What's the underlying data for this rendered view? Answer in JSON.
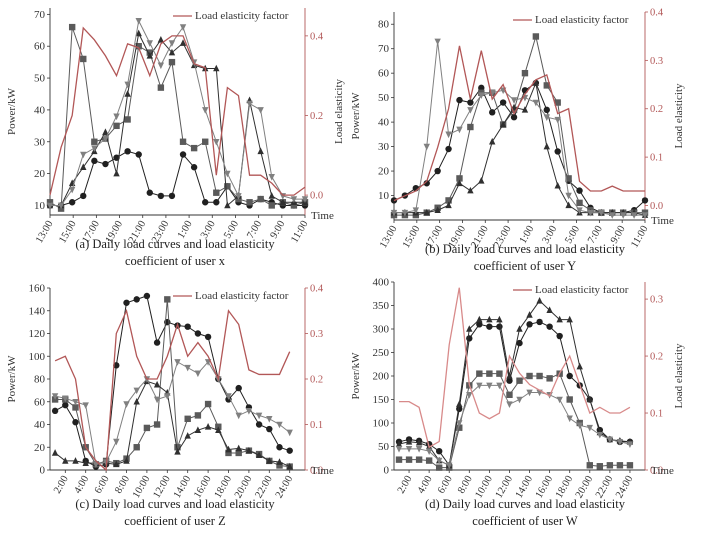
{
  "figure": {
    "panels": [
      "a",
      "b",
      "c",
      "d"
    ]
  },
  "chart_data": [
    {
      "id": "a",
      "type": "line",
      "caption_line1": "(a) Daily load curves and load elasticity",
      "caption_line2": "coefficient of user x",
      "ylabel": "Power/kW",
      "y2label": "Load elasticity",
      "xlabel": "Time",
      "legend": "Load elasticity factor",
      "legend_position": "top-right",
      "ylim": [
        7,
        72
      ],
      "yticks": [
        10,
        20,
        30,
        40,
        50,
        60,
        70
      ],
      "y2lim": [
        -0.05,
        0.47
      ],
      "y2ticks": [
        0.0,
        0.2,
        0.4
      ],
      "y2ticklabels": [
        "0.0",
        "0.2",
        "0.4"
      ],
      "xlim": [
        0,
        22
      ],
      "xtick_positions": [
        1,
        3,
        5,
        7,
        9,
        11,
        13,
        15,
        17,
        19,
        21
      ],
      "xticks": [
        "13:00",
        "15:00",
        "17:00",
        "19:00",
        "21:00",
        "23:00",
        "1:00",
        "3:00",
        "5:00",
        "7:00",
        "9:00",
        "11:00"
      ],
      "xtick_positions_full": [
        0,
        2,
        4,
        6,
        8,
        10,
        12,
        14,
        16,
        18,
        20,
        22
      ],
      "series": [
        {
          "name": "circle",
          "marker": "circle",
          "color": "#202020",
          "values": [
            10,
            10,
            11,
            13,
            24,
            23,
            25,
            27,
            26,
            14,
            13,
            13,
            26,
            22,
            11,
            11,
            16,
            11,
            10,
            12,
            11,
            10,
            10,
            10
          ]
        },
        {
          "name": "square",
          "marker": "square",
          "color": "#5a5a5a",
          "values": [
            11,
            9,
            66,
            56,
            30,
            31,
            35,
            37,
            60,
            58,
            47,
            55,
            30,
            28,
            30,
            14,
            16,
            12,
            11,
            12,
            10,
            11,
            10,
            11
          ]
        },
        {
          "name": "triangle",
          "marker": "triangle",
          "color": "#303030",
          "values": [
            10,
            10,
            17,
            22,
            27,
            33,
            20,
            45,
            64,
            57,
            62,
            58,
            61,
            54,
            53,
            53,
            10,
            13,
            43,
            27,
            13,
            11,
            11,
            11
          ]
        },
        {
          "name": "triangle-down",
          "marker": "triangle-down",
          "color": "#808080",
          "values": [
            10,
            10,
            15,
            26,
            28,
            31,
            38,
            48,
            68,
            61,
            54,
            61,
            66,
            55,
            40,
            30,
            20,
            13,
            42,
            40,
            19,
            13,
            12,
            12
          ]
        },
        {
          "name": "elasticity",
          "marker": "none",
          "color": "#b25757",
          "axis": "right",
          "values": [
            0.0,
            0.12,
            0.2,
            0.42,
            0.39,
            0.35,
            0.3,
            0.38,
            0.37,
            0.3,
            0.38,
            0.4,
            0.4,
            0.33,
            0.32,
            0.05,
            0.27,
            0.25,
            0.05,
            0.05,
            0.03,
            0.0,
            0.0,
            0.02
          ]
        }
      ]
    },
    {
      "id": "b",
      "type": "line",
      "caption_line1": "(b) Daily load curves and load elasticity",
      "caption_line2": "coefficient of user Y",
      "ylabel": "Power/kW",
      "y2label": "Load elasticity",
      "xlabel": "Time",
      "legend": "Load elasticity factor",
      "legend_position": "top-right",
      "ylim": [
        0,
        85
      ],
      "yticks": [
        10,
        20,
        30,
        40,
        50,
        60,
        70,
        80
      ],
      "y2lim": [
        -0.03,
        0.4
      ],
      "y2ticks": [
        0.0,
        0.1,
        0.2,
        0.3,
        0.4
      ],
      "y2ticklabels": [
        "0.0",
        "0.1",
        "0.2",
        "0.3",
        "0.4"
      ],
      "xlim": [
        0,
        22
      ],
      "xtick_positions": [
        1,
        3,
        5,
        7,
        9,
        11,
        13,
        15,
        17,
        19,
        21
      ],
      "xticks": [
        "13:00",
        "15:00",
        "17:00",
        "19:00",
        "21:00",
        "23:00",
        "1:00",
        "3:00",
        "5:00",
        "7:00",
        "9:00",
        "11:00"
      ],
      "xtick_positions_full": [
        0,
        2,
        4,
        6,
        8,
        10,
        12,
        14,
        16,
        18,
        20,
        22
      ],
      "series": [
        {
          "name": "circle",
          "marker": "circle",
          "color": "#202020",
          "values": [
            8,
            10,
            13,
            15,
            20,
            29,
            49,
            48,
            54,
            44,
            48,
            42,
            53,
            56,
            45,
            28,
            16,
            12,
            5,
            3,
            3,
            3,
            4,
            8
          ]
        },
        {
          "name": "square",
          "marker": "square",
          "color": "#5a5a5a",
          "values": [
            2,
            2,
            2,
            3,
            5,
            8,
            17,
            38,
            52,
            52,
            39,
            45,
            60,
            75,
            55,
            48,
            17,
            7,
            4,
            3,
            3,
            3,
            3,
            3
          ]
        },
        {
          "name": "triangle",
          "marker": "triangle",
          "color": "#303030",
          "values": [
            3,
            3,
            3,
            3,
            4,
            6,
            15,
            12,
            16,
            32,
            39,
            46,
            45,
            56,
            30,
            14,
            6,
            3,
            3,
            3,
            3,
            3,
            3,
            2
          ]
        },
        {
          "name": "triangle-down",
          "marker": "triangle-down",
          "color": "#808080",
          "values": [
            3,
            3,
            4,
            30,
            73,
            35,
            37,
            45,
            51,
            52,
            53,
            49,
            50,
            48,
            42,
            41,
            10,
            4,
            3,
            3,
            2,
            2,
            2,
            2
          ]
        },
        {
          "name": "elasticity",
          "marker": "none",
          "color": "#b25757",
          "axis": "right",
          "values": [
            0.01,
            0.02,
            0.03,
            0.05,
            0.12,
            0.2,
            0.33,
            0.22,
            0.32,
            0.22,
            0.25,
            0.19,
            0.23,
            0.26,
            0.27,
            0.19,
            0.2,
            0.05,
            0.03,
            0.03,
            0.04,
            0.03,
            0.03,
            0.03
          ]
        }
      ]
    },
    {
      "id": "c",
      "type": "line",
      "caption_line1": "(c) Daily load curves and load elasticity",
      "caption_line2": "coefficient of user Z",
      "ylabel": "Power/kW",
      "y2label": "",
      "xlabel": "Time",
      "legend": "Load elasticity factor",
      "legend_position": "top-right",
      "ylim": [
        0,
        160
      ],
      "yticks": [
        0,
        20,
        40,
        60,
        80,
        100,
        120,
        140,
        160
      ],
      "y2lim": [
        0,
        0.4
      ],
      "y2ticks": [
        0.0,
        0.1,
        0.2,
        0.3,
        0.4
      ],
      "y2ticklabels": [
        "0.0",
        "0.1",
        "0.2",
        "0.3",
        "0.4"
      ],
      "xlim": [
        0.5,
        25.5
      ],
      "xtick_positions": [
        2,
        4,
        6,
        8,
        10,
        12,
        14,
        16,
        18,
        20,
        22,
        24
      ],
      "xticks": [
        "2:00",
        "4:00",
        "6:00",
        "8:00",
        "10:00",
        "12:00",
        "14:00",
        "16:00",
        "18:00",
        "20:00",
        "22:00",
        "24:00"
      ],
      "xtick_positions_full": [
        2,
        4,
        6,
        8,
        10,
        12,
        14,
        16,
        18,
        20,
        22,
        24
      ],
      "series": [
        {
          "name": "circle",
          "marker": "circle",
          "color": "#202020",
          "values": [
            52,
            57,
            42,
            8,
            3,
            5,
            92,
            147,
            150,
            153,
            112,
            130,
            127,
            126,
            120,
            117,
            80,
            62,
            72,
            55,
            40,
            36,
            20,
            17
          ]
        },
        {
          "name": "square",
          "marker": "square",
          "color": "#5a5a5a",
          "values": [
            62,
            62,
            55,
            20,
            5,
            8,
            6,
            10,
            20,
            37,
            40,
            150,
            20,
            45,
            48,
            58,
            38,
            15,
            15,
            17,
            14,
            8,
            4,
            3
          ]
        },
        {
          "name": "triangle",
          "marker": "triangle",
          "color": "#303030",
          "values": [
            15,
            8,
            8,
            6,
            6,
            6,
            5,
            8,
            60,
            78,
            75,
            68,
            16,
            30,
            35,
            38,
            35,
            18,
            19,
            17,
            13,
            8,
            7,
            3
          ]
        },
        {
          "name": "triangle-down",
          "marker": "triangle-down",
          "color": "#808080",
          "values": [
            65,
            63,
            60,
            57,
            5,
            7,
            25,
            58,
            70,
            80,
            62,
            65,
            95,
            90,
            85,
            95,
            80,
            65,
            48,
            52,
            48,
            45,
            40,
            33
          ]
        },
        {
          "name": "elasticity",
          "marker": "none",
          "color": "#b25757",
          "axis": "right",
          "values": [
            0.24,
            0.25,
            0.2,
            0.05,
            0.02,
            0.0,
            0.3,
            0.35,
            0.25,
            0.2,
            0.2,
            0.25,
            0.32,
            0.25,
            0.28,
            0.25,
            0.2,
            0.35,
            0.32,
            0.22,
            0.21,
            0.21,
            0.21,
            0.26
          ]
        }
      ]
    },
    {
      "id": "d",
      "type": "line",
      "caption_line1": "(d) Daily load curves and load elasticity",
      "caption_line2": "coefficient of user W",
      "ylabel": "Power/kW",
      "y2label": "Load elasticity",
      "xlabel": "Time",
      "legend": "Load elasticity factor",
      "legend_position": "top-right",
      "ylim": [
        0,
        400
      ],
      "yticks": [
        0,
        50,
        100,
        150,
        200,
        250,
        300,
        350,
        400
      ],
      "y2lim": [
        0,
        0.33
      ],
      "y2ticks": [
        0.0,
        0.1,
        0.2,
        0.3
      ],
      "y2ticklabels": [
        "0.0",
        "0.1",
        "0.2",
        "0.3"
      ],
      "xlim": [
        0.5,
        25.5
      ],
      "xtick_positions": [
        2,
        4,
        6,
        8,
        10,
        12,
        14,
        16,
        18,
        20,
        22,
        24
      ],
      "xticks": [
        "2:00",
        "4:00",
        "6:00",
        "8:00",
        "10:00",
        "12:00",
        "14:00",
        "16:00",
        "18:00",
        "20:00",
        "22:00",
        "24:00"
      ],
      "xtick_positions_full": [
        2,
        4,
        6,
        8,
        10,
        12,
        14,
        16,
        18,
        20,
        22,
        24
      ],
      "series": [
        {
          "name": "circle",
          "marker": "circle",
          "color": "#202020",
          "values": [
            60,
            65,
            62,
            55,
            40,
            10,
            130,
            280,
            310,
            305,
            305,
            190,
            270,
            310,
            315,
            305,
            285,
            200,
            180,
            150,
            85,
            65,
            60,
            60
          ]
        },
        {
          "name": "square",
          "marker": "square",
          "color": "#5a5a5a",
          "values": [
            22,
            22,
            22,
            20,
            5,
            5,
            90,
            180,
            205,
            205,
            205,
            160,
            190,
            200,
            200,
            195,
            205,
            150,
            100,
            10,
            8,
            10,
            10,
            10
          ]
        },
        {
          "name": "triangle",
          "marker": "triangle",
          "color": "#303030",
          "values": [
            55,
            60,
            58,
            50,
            20,
            10,
            140,
            300,
            320,
            320,
            320,
            200,
            300,
            330,
            360,
            340,
            320,
            320,
            220,
            150,
            80,
            65,
            62,
            60
          ]
        },
        {
          "name": "triangle-down",
          "marker": "triangle-down",
          "color": "#808080",
          "values": [
            45,
            45,
            45,
            40,
            20,
            10,
            100,
            160,
            180,
            180,
            180,
            140,
            150,
            165,
            165,
            160,
            150,
            110,
            95,
            90,
            75,
            65,
            60,
            55
          ]
        },
        {
          "name": "elasticity",
          "marker": "none",
          "color": "#d88a8a",
          "axis": "right",
          "values": [
            0.12,
            0.12,
            0.11,
            0.04,
            0.05,
            0.22,
            0.32,
            0.15,
            0.1,
            0.09,
            0.1,
            0.2,
            0.17,
            0.15,
            0.14,
            0.13,
            0.17,
            0.2,
            0.15,
            0.1,
            0.11,
            0.1,
            0.1,
            0.11
          ]
        }
      ]
    }
  ]
}
